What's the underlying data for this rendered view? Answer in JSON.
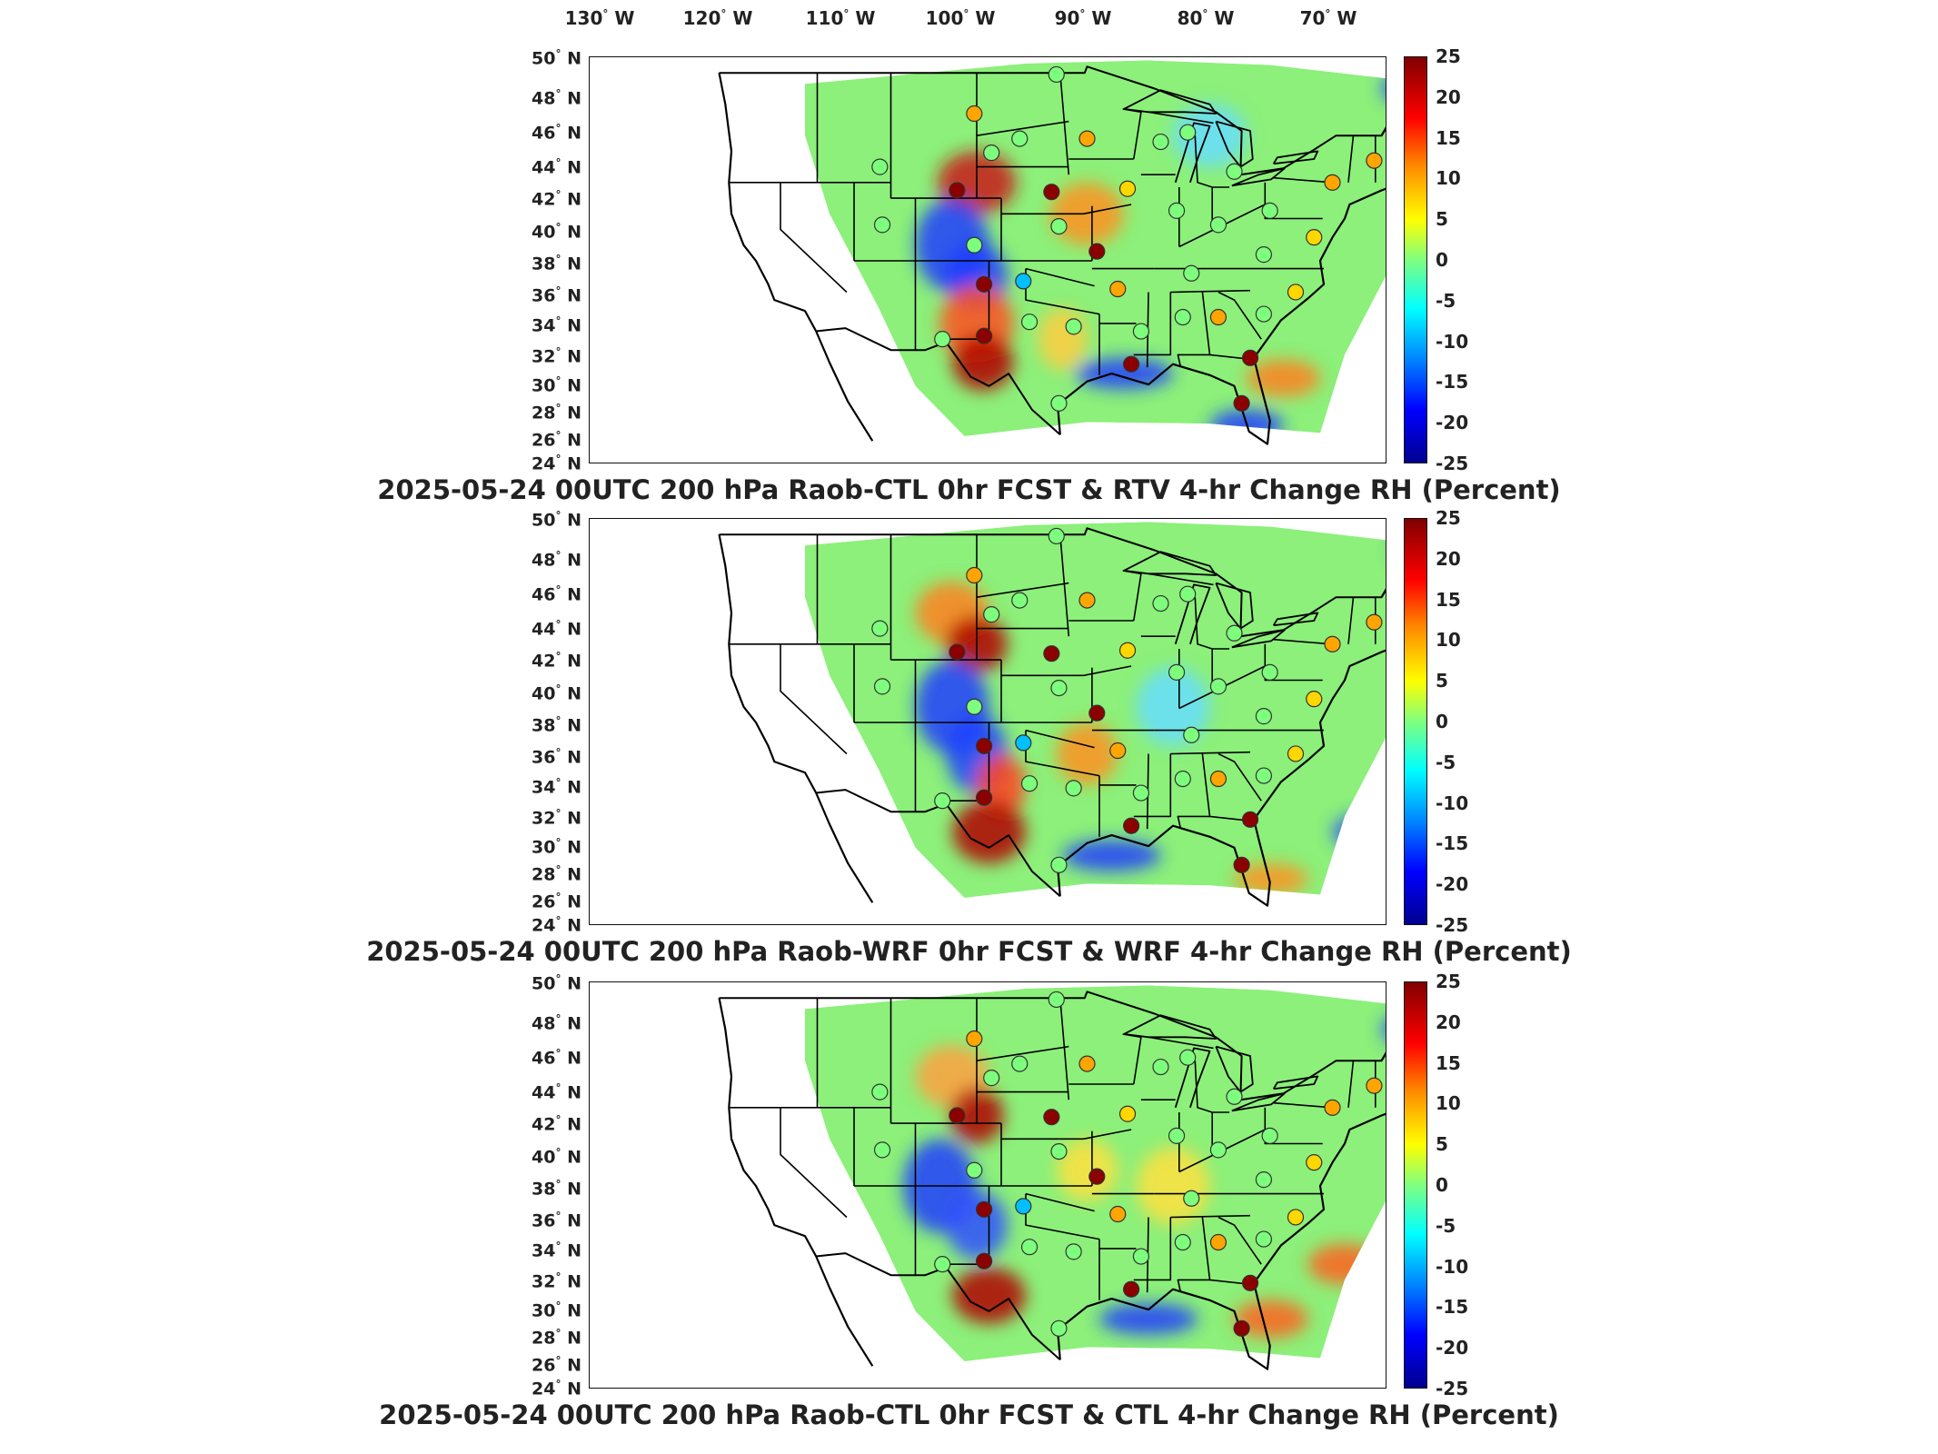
{
  "longitude_labels": [
    "130",
    "120",
    "110",
    "100",
    "90",
    "80",
    "70"
  ],
  "lon_suffix": "W",
  "latitude_labels": [
    "50",
    "48",
    "46",
    "44",
    "42",
    "40",
    "38",
    "36",
    "34",
    "32",
    "30",
    "28",
    "26",
    "24"
  ],
  "lat_suffix": "N",
  "degree_symbol": "°",
  "colorbar_ticks": [
    "25",
    "20",
    "15",
    "10",
    "5",
    "0",
    "-5",
    "-10",
    "-15",
    "-20",
    "-25"
  ],
  "colors": {
    "positive_strong": "#8b0000",
    "positive": "#ff4500",
    "warm": "#ffa500",
    "mild": "#ffd700",
    "neutral": "#7dff7d",
    "cool": "#00bfff",
    "negative": "#1e4bff",
    "negative_strong": "#00008b"
  },
  "panels": [
    {
      "title": "2025-05-24 00UTC 200 hPa Raob-CTL 0hr FCST & RTV 4-hr Change RH (Percent)"
    },
    {
      "title": "2025-05-24 00UTC 200 hPa Raob-WRF 0hr FCST & WRF 4-hr Change RH (Percent)"
    },
    {
      "title": "2025-05-24 00UTC 200 hPa Raob-CTL 0hr FCST & CTL 4-hr Change RH (Percent)"
    }
  ],
  "stations": [
    {
      "lon": -104.2,
      "lat": 46.4,
      "value": 10
    },
    {
      "lon": -102.8,
      "lat": 43.9,
      "value": 0
    },
    {
      "lon": -100.5,
      "lat": 44.8,
      "value": 0
    },
    {
      "lon": -97.5,
      "lat": 48.9,
      "value": 0
    },
    {
      "lon": -95.0,
      "lat": 44.8,
      "value": 10
    },
    {
      "lon": -89.0,
      "lat": 44.6,
      "value": 0
    },
    {
      "lon": -86.8,
      "lat": 45.2,
      "value": 2
    },
    {
      "lon": -83.0,
      "lat": 42.7,
      "value": 0
    },
    {
      "lon": -71.6,
      "lat": 43.4,
      "value": 10
    },
    {
      "lon": -75.0,
      "lat": 42.0,
      "value": 12
    },
    {
      "lon": -111.9,
      "lat": 43.0,
      "value": 0
    },
    {
      "lon": -105.6,
      "lat": 41.5,
      "value": 25
    },
    {
      "lon": -97.9,
      "lat": 41.4,
      "value": 25
    },
    {
      "lon": -91.7,
      "lat": 41.6,
      "value": 5
    },
    {
      "lon": -87.7,
      "lat": 40.2,
      "value": 0
    },
    {
      "lon": -84.3,
      "lat": 39.3,
      "value": 0
    },
    {
      "lon": -80.1,
      "lat": 40.2,
      "value": 0
    },
    {
      "lon": -76.5,
      "lat": 38.5,
      "value": 8
    },
    {
      "lon": -111.7,
      "lat": 39.3,
      "value": 0
    },
    {
      "lon": -104.2,
      "lat": 38.0,
      "value": 0
    },
    {
      "lon": -97.3,
      "lat": 39.2,
      "value": 0
    },
    {
      "lon": -94.2,
      "lat": 37.6,
      "value": 25
    },
    {
      "lon": -103.4,
      "lat": 35.5,
      "value": 25
    },
    {
      "lon": -100.2,
      "lat": 35.7,
      "value": -10
    },
    {
      "lon": -92.5,
      "lat": 35.2,
      "value": 10
    },
    {
      "lon": -86.5,
      "lat": 36.2,
      "value": 0
    },
    {
      "lon": -80.6,
      "lat": 37.4,
      "value": 0
    },
    {
      "lon": -78.0,
      "lat": 35.0,
      "value": 5
    },
    {
      "lon": -106.8,
      "lat": 32.0,
      "value": 0
    },
    {
      "lon": -103.4,
      "lat": 32.2,
      "value": 25
    },
    {
      "lon": -99.7,
      "lat": 33.1,
      "value": 0
    },
    {
      "lon": -96.1,
      "lat": 32.8,
      "value": 0
    },
    {
      "lon": -90.6,
      "lat": 32.5,
      "value": 0
    },
    {
      "lon": -87.2,
      "lat": 33.4,
      "value": 0
    },
    {
      "lon": -84.3,
      "lat": 33.4,
      "value": 10
    },
    {
      "lon": -80.6,
      "lat": 33.6,
      "value": 0
    },
    {
      "lon": -91.4,
      "lat": 30.4,
      "value": 25
    },
    {
      "lon": -81.7,
      "lat": 30.8,
      "value": 25
    },
    {
      "lon": -97.3,
      "lat": 27.9,
      "value": 0
    },
    {
      "lon": -82.4,
      "lat": 27.9,
      "value": 25
    }
  ]
}
